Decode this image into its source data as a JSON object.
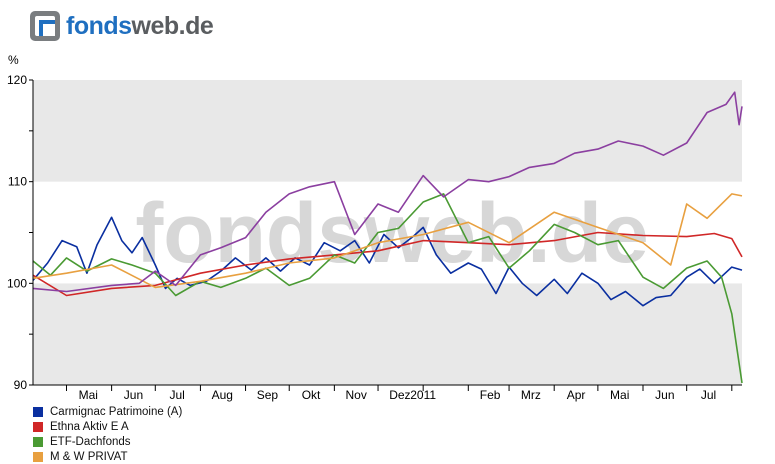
{
  "logo": {
    "part1": "fonds",
    "part2": "web.de",
    "watermark": "fondsweb.de"
  },
  "colors": {
    "bg_band": "#e8e8e8",
    "axis": "#000000",
    "watermark": "#d7d7d7"
  },
  "chart_data": {
    "type": "line",
    "ylabel": "%",
    "ylim": [
      90,
      120
    ],
    "yticks": [
      90,
      100,
      110,
      120
    ],
    "x_range": [
      "2010-04-08",
      "2011-08-08"
    ],
    "x_tick_labels": [
      "Mai",
      "Jun",
      "Jul",
      "Aug",
      "Sep",
      "Okt",
      "Nov",
      "Dez",
      "2011",
      "Feb",
      "Mrz",
      "Apr",
      "Mai",
      "Jun",
      "Jul"
    ],
    "month_starts": [
      "2010-05-01",
      "2010-06-01",
      "2010-07-01",
      "2010-08-01",
      "2010-09-01",
      "2010-10-01",
      "2010-11-01",
      "2010-12-01",
      "2011-01-01",
      "2011-02-01",
      "2011-03-01",
      "2011-04-01",
      "2011-05-01",
      "2011-06-01",
      "2011-07-01",
      "2011-08-01"
    ],
    "label_dates": [
      "2010-05-16",
      "2010-06-16",
      "2010-07-16",
      "2010-08-16",
      "2010-09-16",
      "2010-10-16",
      "2010-11-16",
      "2010-12-16",
      "2011-01-01",
      "2011-02-16",
      "2011-03-16",
      "2011-04-16",
      "2011-05-16",
      "2011-06-16",
      "2011-07-16"
    ],
    "series": [
      {
        "name": "Carmignac Patrimoine (A)",
        "color": "#0a2fa0",
        "x": [
          "2010-04-08",
          "2010-04-18",
          "2010-04-28",
          "2010-05-08",
          "2010-05-15",
          "2010-05-22",
          "2010-06-01",
          "2010-06-08",
          "2010-06-15",
          "2010-06-22",
          "2010-07-01",
          "2010-07-08",
          "2010-07-16",
          "2010-07-25",
          "2010-08-05",
          "2010-08-15",
          "2010-08-25",
          "2010-09-05",
          "2010-09-15",
          "2010-09-25",
          "2010-10-05",
          "2010-10-15",
          "2010-10-25",
          "2010-11-05",
          "2010-11-15",
          "2010-11-25",
          "2010-12-05",
          "2010-12-15",
          "2010-12-25",
          "2011-01-01",
          "2011-01-10",
          "2011-01-20",
          "2011-02-01",
          "2011-02-10",
          "2011-02-20",
          "2011-03-01",
          "2011-03-10",
          "2011-03-20",
          "2011-04-01",
          "2011-04-10",
          "2011-04-20",
          "2011-05-01",
          "2011-05-10",
          "2011-05-20",
          "2011-06-01",
          "2011-06-10",
          "2011-06-20",
          "2011-07-01",
          "2011-07-10",
          "2011-07-20",
          "2011-08-01",
          "2011-08-08"
        ],
        "y": [
          100.3,
          102.0,
          104.2,
          103.6,
          101.0,
          103.8,
          106.5,
          104.2,
          103.0,
          104.5,
          101.8,
          99.5,
          100.5,
          99.8,
          100.2,
          101.2,
          102.5,
          101.3,
          102.5,
          101.2,
          102.5,
          101.8,
          104.0,
          103.2,
          104.2,
          102.0,
          104.8,
          103.5,
          104.6,
          105.5,
          102.8,
          101.0,
          102.0,
          101.4,
          99.0,
          101.6,
          100.0,
          98.8,
          100.4,
          99.0,
          101.0,
          100.0,
          98.4,
          99.2,
          97.8,
          98.6,
          98.8,
          100.6,
          101.4,
          100.0,
          101.6,
          101.3
        ]
      },
      {
        "name": "Ethna Aktiv E A",
        "color": "#d02727",
        "x": [
          "2010-04-08",
          "2010-05-01",
          "2010-06-01",
          "2010-07-01",
          "2010-08-01",
          "2010-09-01",
          "2010-10-01",
          "2010-11-01",
          "2010-12-01",
          "2011-01-01",
          "2011-02-01",
          "2011-03-01",
          "2011-04-01",
          "2011-05-01",
          "2011-06-01",
          "2011-07-01",
          "2011-07-20",
          "2011-08-01",
          "2011-08-08"
        ],
        "y": [
          100.8,
          98.8,
          99.5,
          99.8,
          101.0,
          101.8,
          102.4,
          102.8,
          103.2,
          104.2,
          104.0,
          103.8,
          104.2,
          105.0,
          104.7,
          104.6,
          104.9,
          104.4,
          102.6
        ]
      },
      {
        "name": "ETF-Dachfonds",
        "color": "#4a9a33",
        "x": [
          "2010-04-08",
          "2010-04-20",
          "2010-05-01",
          "2010-05-15",
          "2010-06-01",
          "2010-06-15",
          "2010-07-01",
          "2010-07-15",
          "2010-08-01",
          "2010-08-15",
          "2010-09-01",
          "2010-09-15",
          "2010-10-01",
          "2010-10-15",
          "2010-11-01",
          "2010-11-15",
          "2010-12-01",
          "2010-12-15",
          "2011-01-01",
          "2011-01-15",
          "2011-02-01",
          "2011-02-15",
          "2011-03-01",
          "2011-03-15",
          "2011-04-01",
          "2011-04-15",
          "2011-05-01",
          "2011-05-15",
          "2011-06-01",
          "2011-06-15",
          "2011-07-01",
          "2011-07-15",
          "2011-07-25",
          "2011-08-01",
          "2011-08-08"
        ],
        "y": [
          102.2,
          100.8,
          102.5,
          101.2,
          102.4,
          101.8,
          101.0,
          98.8,
          100.2,
          99.6,
          100.5,
          101.5,
          99.8,
          100.5,
          102.8,
          102.0,
          105.0,
          105.4,
          108.0,
          108.8,
          104.0,
          104.6,
          101.5,
          103.2,
          105.8,
          105.0,
          103.8,
          104.2,
          100.6,
          99.5,
          101.5,
          102.2,
          100.6,
          97.0,
          90.2
        ]
      },
      {
        "name": "M & W PRIVAT",
        "color": "#e8a040",
        "x": [
          "2010-04-08",
          "2010-05-01",
          "2010-06-01",
          "2010-07-01",
          "2010-08-01",
          "2010-09-01",
          "2010-10-01",
          "2010-11-01",
          "2010-12-01",
          "2011-01-01",
          "2011-02-01",
          "2011-03-01",
          "2011-04-01",
          "2011-05-01",
          "2011-06-01",
          "2011-06-20",
          "2011-07-01",
          "2011-07-15",
          "2011-08-01",
          "2011-08-08"
        ],
        "y": [
          100.5,
          101.0,
          101.8,
          99.6,
          100.2,
          101.0,
          102.0,
          102.5,
          104.0,
          104.8,
          106.0,
          104.0,
          107.0,
          105.5,
          104.0,
          101.8,
          107.8,
          106.4,
          108.8,
          108.6
        ]
      },
      {
        "name": "",
        "color": "#8b3fa0",
        "x": [
          "2010-04-08",
          "2010-05-01",
          "2010-06-01",
          "2010-06-20",
          "2010-07-01",
          "2010-07-15",
          "2010-08-01",
          "2010-08-15",
          "2010-09-01",
          "2010-09-15",
          "2010-10-01",
          "2010-10-15",
          "2010-11-01",
          "2010-11-15",
          "2010-12-01",
          "2010-12-15",
          "2011-01-01",
          "2011-01-15",
          "2011-02-01",
          "2011-02-15",
          "2011-03-01",
          "2011-03-15",
          "2011-04-01",
          "2011-04-15",
          "2011-05-01",
          "2011-05-15",
          "2011-06-01",
          "2011-06-15",
          "2011-07-01",
          "2011-07-15",
          "2011-07-28",
          "2011-08-03",
          "2011-08-06",
          "2011-08-08"
        ],
        "y": [
          99.5,
          99.2,
          99.8,
          100.0,
          101.2,
          99.8,
          102.8,
          103.5,
          104.5,
          107.0,
          108.8,
          109.5,
          110.0,
          104.8,
          107.8,
          107.0,
          110.6,
          108.5,
          110.2,
          110.0,
          110.5,
          111.4,
          111.8,
          112.8,
          113.2,
          114.0,
          113.5,
          112.6,
          113.8,
          116.8,
          117.6,
          118.8,
          115.6,
          117.4
        ]
      }
    ]
  }
}
